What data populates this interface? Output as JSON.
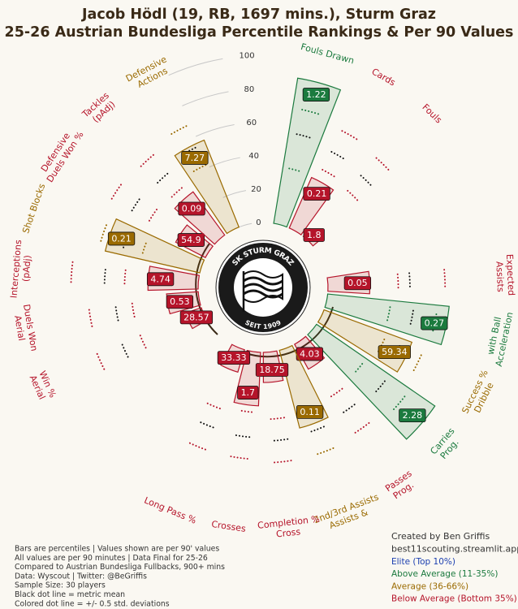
{
  "title": "Jacob Hödl (19, RB, 1697 mins.), Sturm Graz",
  "subtitle": "25-26 Austrian Bundesliga Percentile Rankings & Per 90 Values",
  "chart_data": {
    "type": "pizza",
    "categories": [
      "Fouls Drawn",
      "Cards",
      "Fouls",
      "Expected Assists",
      "Acceleration with Ball",
      "Dribble Success %",
      "Prog. Carries",
      "Prog. Passes",
      "Assists & 2nd/3rd Assists",
      "Cross Completion %",
      "Crosses",
      "Long Pass %",
      "Aerial Win %",
      "Aerial Duels Won",
      "Interceptions (pAdj)",
      "Shot Blocks",
      "Defensive Duels Won %",
      "Tackles (pAdj)",
      "Defensive Actions"
    ],
    "values": [
      88,
      33,
      6,
      25,
      73,
      56,
      86,
      17,
      48,
      18,
      32,
      14,
      10,
      19,
      30,
      58,
      20,
      32,
      56
    ],
    "per90": [
      1.22,
      0.21,
      1.8,
      0.05,
      0.27,
      59.34,
      2.28,
      4.03,
      0.11,
      18.75,
      1.7,
      33.33,
      28.57,
      0.53,
      4.74,
      0.21,
      54.9,
      0.09,
      7.27
    ],
    "colors": [
      "#1b7a3e",
      "#b5142a",
      "#b5142a",
      "#b5142a",
      "#1b7a3e",
      "#9a6a00",
      "#1b7a3e",
      "#b5142a",
      "#9a6a00",
      "#b5142a",
      "#b5142a",
      "#b5142a",
      "#b5142a",
      "#b5142a",
      "#b5142a",
      "#9a6a00",
      "#b5142a",
      "#b5142a",
      "#9a6a00"
    ],
    "low": [
      34,
      40,
      38,
      42,
      38,
      40,
      36,
      38,
      40,
      40,
      36,
      38,
      40,
      40,
      44,
      36,
      40,
      38,
      42
    ],
    "mean": [
      55,
      52,
      50,
      49,
      52,
      50,
      53,
      50,
      52,
      53,
      51,
      50,
      52,
      50,
      56,
      48,
      52,
      50,
      54
    ],
    "high": [
      70,
      66,
      64,
      70,
      66,
      64,
      68,
      64,
      66,
      66,
      64,
      64,
      68,
      66,
      76,
      62,
      66,
      64,
      68
    ],
    "rlim": [
      0,
      100
    ],
    "rticks": [
      0,
      20,
      40,
      60,
      80,
      100
    ]
  },
  "logo": {
    "top": "SK STURM GRAZ",
    "bottom": "SEIT 1909"
  },
  "notes": [
    "Bars are percentiles | Values shown are per 90' values",
    "All values are per 90 minutes | Data Final for 25-26",
    "Compared to Austrian Bundesliga Fullbacks, 900+ mins",
    "Data: Wyscout | Twitter: @BeGriffis",
    "Sample Size: 30 players",
    "Black dot line = metric mean",
    "Colored dot line = +/- 0.5 std. deviations"
  ],
  "credits": [
    "Created by Ben Griffis",
    "best11scouting.streamlit.app"
  ],
  "legend": [
    {
      "label": "Elite (Top 10%)",
      "color": "#1c3fb0"
    },
    {
      "label": "Above Average (11-35%)",
      "color": "#1b7a3e"
    },
    {
      "label": "Average (36-66%)",
      "color": "#9a6a00"
    },
    {
      "label": "Below Average (Bottom 35%)",
      "color": "#b5142a"
    }
  ]
}
